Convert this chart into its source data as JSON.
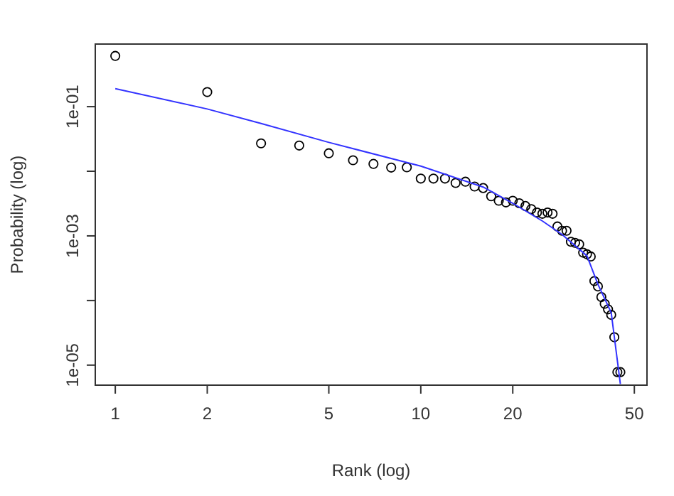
{
  "chart_data": {
    "type": "scatter",
    "xlabel": "Rank (log)",
    "ylabel": "Probability (log)",
    "log": "xy",
    "xlim": [
      0.86,
      55
    ],
    "ylim": [
      4.9e-06,
      0.93
    ],
    "xticks": [
      1,
      2,
      5,
      10,
      20,
      50
    ],
    "yticks": [
      {
        "value": 0.1,
        "label": "1e-01"
      },
      {
        "value": 0.01,
        "label": null
      },
      {
        "value": 0.001,
        "label": "1e-03"
      },
      {
        "value": 0.0001,
        "label": null
      },
      {
        "value": 1e-05,
        "label": "1e-05"
      }
    ],
    "grid": false,
    "series": [
      {
        "marker": "circle",
        "color": "#000000",
        "x": [
          1,
          2,
          3,
          4,
          5,
          6,
          7,
          8,
          9,
          10,
          11,
          12,
          13,
          14,
          15,
          16,
          17,
          18,
          19,
          20,
          21,
          22,
          23,
          24,
          25,
          26,
          27,
          28,
          29,
          30,
          31,
          32,
          33,
          34,
          35,
          36,
          37,
          38,
          39,
          40,
          41,
          42,
          43,
          44,
          45
        ],
        "values": [
          0.61,
          0.168,
          0.027,
          0.025,
          0.019,
          0.0148,
          0.013,
          0.0114,
          0.0115,
          0.0077,
          0.0077,
          0.0077,
          0.0066,
          0.0069,
          0.0058,
          0.0055,
          0.0041,
          0.0035,
          0.0033,
          0.0035,
          0.0032,
          0.0029,
          0.0026,
          0.0023,
          0.0022,
          0.0023,
          0.0022,
          0.0014,
          0.0012,
          0.0012,
          0.00081,
          0.00078,
          0.00074,
          0.00055,
          0.00052,
          0.00048,
          0.0002,
          0.000165,
          0.000113,
          8.9e-05,
          7.3e-05,
          6e-05,
          2.7e-05,
          7.8e-06,
          7.8e-06
        ]
      },
      {
        "type": "line",
        "color": "#3333ff",
        "x": [
          1,
          2,
          3,
          5,
          10,
          16,
          20,
          25,
          29,
          35,
          38,
          42,
          45
        ],
        "values": [
          0.19,
          0.092,
          0.055,
          0.028,
          0.012,
          0.0057,
          0.0032,
          0.0017,
          0.00105,
          0.00049,
          0.000178,
          6.5e-05,
          5.1e-06
        ]
      }
    ]
  }
}
